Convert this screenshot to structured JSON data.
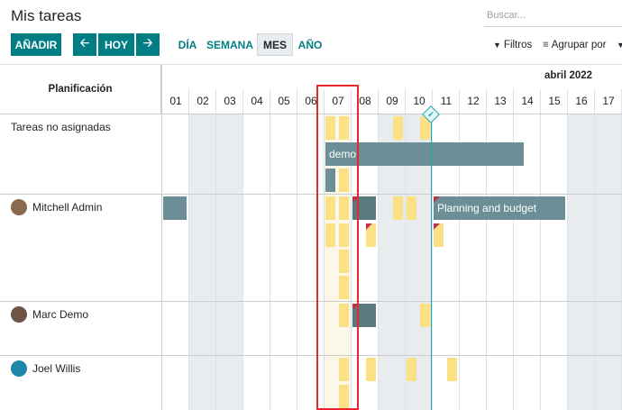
{
  "header": {
    "title": "Mis tareas",
    "search_placeholder": "Buscar..."
  },
  "toolbar": {
    "add_label": "AÑADIR",
    "prev_icon": "◀",
    "today_label": "HOY",
    "next_icon": "▶",
    "scales": {
      "day": "DÍA",
      "week": "SEMANA",
      "month": "MES",
      "year": "AÑO"
    },
    "active_scale": "MES",
    "filters_label": "Filtros",
    "groupby_label": "Agrupar por",
    "filters_icon": "filter-icon",
    "groupby_icon": "list-icon"
  },
  "gantt": {
    "row_header": "Planificación",
    "month": "abril 2022",
    "days": [
      "01",
      "02",
      "03",
      "04",
      "05",
      "06",
      "07",
      "08",
      "09",
      "10",
      "11",
      "12",
      "13",
      "14",
      "15",
      "16",
      "17"
    ],
    "today": "07",
    "rows": [
      {
        "label": "Tareas no asignadas",
        "avatar": false
      },
      {
        "label": "Mitchell Admin",
        "avatar": true,
        "avatar_color": "#8a6a4f"
      },
      {
        "label": "Marc Demo",
        "avatar": true,
        "avatar_color": "#6d5443"
      },
      {
        "label": "Joel Willis",
        "avatar": true,
        "avatar_color": "#1e88a8"
      }
    ],
    "bars": {
      "demo": "demo",
      "planning": "Planning and budget"
    }
  },
  "colors": {
    "primary": "#017e84",
    "pill": "#fbe183",
    "bar": "#6c8f97",
    "now_line": "#1aa7a7",
    "highlight": "#e8262c"
  }
}
